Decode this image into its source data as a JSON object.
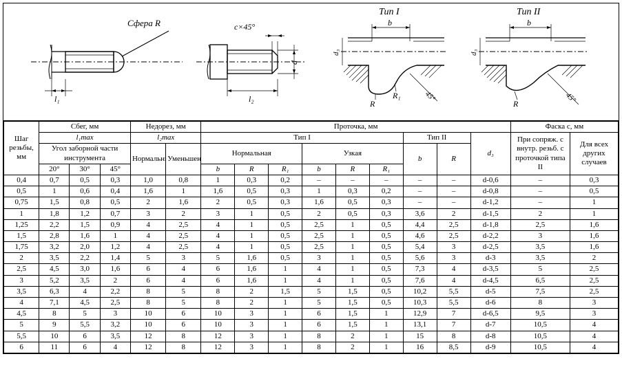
{
  "diagram": {
    "label_sphere": "Сфера R",
    "label_l1": "l₁",
    "label_l2": "l₂",
    "label_cx45": "c×45°",
    "label_d": "d",
    "label_d3a": "d₃",
    "label_d3b": "d₃",
    "label_ba": "b",
    "label_bb": "b",
    "label_Ra": "R",
    "label_R1a": "R₁",
    "label_Rb": "R",
    "label_45a": "45°",
    "label_45b": "45°",
    "label_tip1": "Тип I",
    "label_tip2": "Тип II"
  },
  "header": {
    "pitch": "Шаг резьбы, мм",
    "sbeg": "Сбег, мм",
    "nedorez": "Недорез, мм",
    "protochka": "Проточка, мм",
    "faska": "Фаска c, мм",
    "l1max": "l₁max",
    "l2max": "l₂max",
    "tip1": "Тип I",
    "tip2": "Тип II",
    "ugol": "Угол заборной части инструмента",
    "a20": "20°",
    "a30": "30°",
    "a45": "45°",
    "normal": "Нормальный",
    "umen": "Уменьшенный",
    "normaln": "Нормальная",
    "uzkaya": "Узкая",
    "b": "b",
    "R": "R",
    "R1": "R₁",
    "d3": "d₃",
    "pri": "При сопряж. с внутр. резьб. с проточкой типа II",
    "dlya": "Для всех других случаев"
  },
  "rows": [
    [
      "0,4",
      "0,7",
      "0,5",
      "0,3",
      "1,0",
      "0,8",
      "1",
      "0,3",
      "0,2",
      "–",
      "–",
      "–",
      "–",
      "–",
      "d-0,6",
      "–",
      "0,3"
    ],
    [
      "0,5",
      "1",
      "0,6",
      "0,4",
      "1,6",
      "1",
      "1,6",
      "0,5",
      "0,3",
      "1",
      "0,3",
      "0,2",
      "–",
      "–",
      "d-0,8",
      "–",
      "0,5"
    ],
    [
      "0,75",
      "1,5",
      "0,8",
      "0,5",
      "2",
      "1,6",
      "2",
      "0,5",
      "0,3",
      "1,6",
      "0,5",
      "0,3",
      "–",
      "–",
      "d-1,2",
      "–",
      "1"
    ],
    [
      "1",
      "1,8",
      "1,2",
      "0,7",
      "3",
      "2",
      "3",
      "1",
      "0,5",
      "2",
      "0,5",
      "0,3",
      "3,6",
      "2",
      "d-1,5",
      "2",
      "1"
    ],
    [
      "1,25",
      "2,2",
      "1,5",
      "0,9",
      "4",
      "2,5",
      "4",
      "1",
      "0,5",
      "2,5",
      "1",
      "0,5",
      "4,4",
      "2,5",
      "d-1,8",
      "2,5",
      "1,6"
    ],
    [
      "1,5",
      "2,8",
      "1,6",
      "1",
      "4",
      "2,5",
      "4",
      "1",
      "0,5",
      "2,5",
      "1",
      "0,5",
      "4,6",
      "2,5",
      "d-2,2",
      "3",
      "1,6"
    ],
    [
      "1,75",
      "3,2",
      "2,0",
      "1,2",
      "4",
      "2,5",
      "4",
      "1",
      "0,5",
      "2,5",
      "1",
      "0,5",
      "5,4",
      "3",
      "d-2,5",
      "3,5",
      "1,6"
    ],
    [
      "2",
      "3,5",
      "2,2",
      "1,4",
      "5",
      "3",
      "5",
      "1,6",
      "0,5",
      "3",
      "1",
      "0,5",
      "5,6",
      "3",
      "d-3",
      "3,5",
      "2"
    ],
    [
      "2,5",
      "4,5",
      "3,0",
      "1,6",
      "6",
      "4",
      "6",
      "1,6",
      "1",
      "4",
      "1",
      "0,5",
      "7,3",
      "4",
      "d-3,5",
      "5",
      "2,5"
    ],
    [
      "3",
      "5,2",
      "3,5",
      "2",
      "6",
      "4",
      "6",
      "1,6",
      "1",
      "4",
      "1",
      "0,5",
      "7,6",
      "4",
      "d-4,5",
      "6,5",
      "2,5"
    ],
    [
      "3,5",
      "6,3",
      "4",
      "2,2",
      "8",
      "5",
      "8",
      "2",
      "1,5",
      "5",
      "1,5",
      "0,5",
      "10,2",
      "5,5",
      "d-5",
      "7,5",
      "2,5"
    ],
    [
      "4",
      "7,1",
      "4,5",
      "2,5",
      "8",
      "5",
      "8",
      "2",
      "1",
      "5",
      "1,5",
      "0,5",
      "10,3",
      "5,5",
      "d-6",
      "8",
      "3"
    ],
    [
      "4,5",
      "8",
      "5",
      "3",
      "10",
      "6",
      "10",
      "3",
      "1",
      "6",
      "1,5",
      "1",
      "12,9",
      "7",
      "d-6,5",
      "9,5",
      "3"
    ],
    [
      "5",
      "9",
      "5,5",
      "3,2",
      "10",
      "6",
      "10",
      "3",
      "1",
      "6",
      "1,5",
      "1",
      "13,1",
      "7",
      "d-7",
      "10,5",
      "4"
    ],
    [
      "5,5",
      "10",
      "6",
      "3,5",
      "12",
      "8",
      "12",
      "3",
      "1",
      "8",
      "2",
      "1",
      "15",
      "8",
      "d-8",
      "10,5",
      "4"
    ],
    [
      "6",
      "11",
      "6",
      "4",
      "12",
      "8",
      "12",
      "3",
      "1",
      "8",
      "2",
      "1",
      "16",
      "8,5",
      "d-9",
      "10,5",
      "4"
    ]
  ]
}
